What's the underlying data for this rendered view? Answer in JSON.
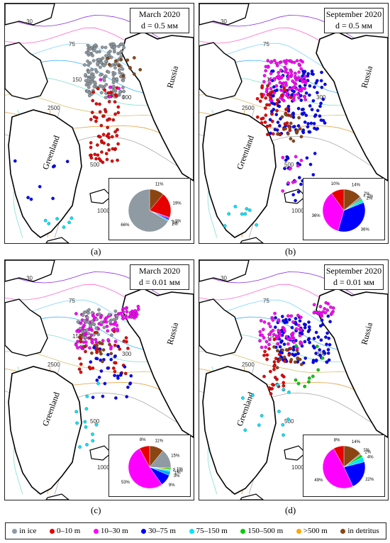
{
  "colors": {
    "in_ice": "#8f9aa3",
    "m0_10": "#e60000",
    "m10_30": "#ff00ff",
    "m30_75": "#0000ff",
    "m75_150": "#00e5ff",
    "m150_500": "#00cc00",
    "m500": "#ffa500",
    "detritus": "#8b4513",
    "land": "#ffffff",
    "coast": "#000000"
  },
  "places": {
    "russia": "Russia",
    "greenland": "Greenland"
  },
  "panels": [
    {
      "label": "(a)",
      "title": "March 2020",
      "subtitle": "d = 0.5 мм",
      "pie": [
        {
          "color": "#8b4513",
          "pct": 11,
          "label": "11%"
        },
        {
          "color": "#e60000",
          "pct": 19,
          "label": "19%"
        },
        {
          "color": "#ff00ff",
          "pct": 1,
          "label": "< 1%"
        },
        {
          "color": "#0000ff",
          "pct": 1,
          "label": "1%"
        },
        {
          "color": "#00e5ff",
          "pct": 1,
          "label": "1%"
        },
        {
          "color": "#8f9aa3",
          "pct": 66,
          "label": "66%"
        }
      ]
    },
    {
      "label": "(b)",
      "title": "September 2020",
      "subtitle": "d = 0.5 мм",
      "pie": [
        {
          "color": "#8b4513",
          "pct": 14,
          "label": "14%"
        },
        {
          "color": "#8f9aa3",
          "pct": 2,
          "label": "2%"
        },
        {
          "color": "#00cc00",
          "pct": 1,
          "label": "< 1%"
        },
        {
          "color": "#00e5ff",
          "pct": 2,
          "label": "2%"
        },
        {
          "color": "#0000ff",
          "pct": 36,
          "label": "36%"
        },
        {
          "color": "#ff00ff",
          "pct": 36,
          "label": "36%"
        },
        {
          "color": "#e60000",
          "pct": 10,
          "label": "10%"
        }
      ]
    },
    {
      "label": "(c)",
      "title": "March 2020",
      "subtitle": "d = 0.01 мм",
      "pie": [
        {
          "color": "#8b4513",
          "pct": 11,
          "label": "11%"
        },
        {
          "color": "#8f9aa3",
          "pct": 15,
          "label": "15%"
        },
        {
          "color": "#00cc00",
          "pct": 1,
          "label": "< 1%"
        },
        {
          "color": "#ffa500",
          "pct": 1,
          "label": "< 1%"
        },
        {
          "color": "#00e5ff",
          "pct": 1,
          "label": "1%"
        },
        {
          "color": "#00aaff",
          "pct": 3,
          "label": "3%"
        },
        {
          "color": "#0000ff",
          "pct": 9,
          "label": "9%"
        },
        {
          "color": "#ff00ff",
          "pct": 53,
          "label": "53%"
        },
        {
          "color": "#e60000",
          "pct": 8,
          "label": "8%"
        }
      ]
    },
    {
      "label": "(d)",
      "title": "September 2020",
      "subtitle": "d = 0.01 мм",
      "pie": [
        {
          "color": "#8b4513",
          "pct": 14,
          "label": "14%"
        },
        {
          "color": "#8f9aa3",
          "pct": 1,
          "label": "1%"
        },
        {
          "color": "#00cc00",
          "pct": 2,
          "label": "2%"
        },
        {
          "color": "#00e5ff",
          "pct": 4,
          "label": "4%"
        },
        {
          "color": "#0000ff",
          "pct": 22,
          "label": "22%"
        },
        {
          "color": "#ff00ff",
          "pct": 49,
          "label": "49%"
        },
        {
          "color": "#e60000",
          "pct": 8,
          "label": "8%"
        }
      ]
    }
  ],
  "contour_labels": [
    "30",
    "75",
    "150",
    "300",
    "500",
    "1000",
    "2500"
  ],
  "legend": [
    {
      "label": "in ice",
      "color": "#8f9aa3"
    },
    {
      "label": "0–10 m",
      "color": "#e60000"
    },
    {
      "label": "10–30 m",
      "color": "#ff00ff"
    },
    {
      "label": "30–75 m",
      "color": "#0000ff"
    },
    {
      "label": "75–150 m",
      "color": "#00e5ff"
    },
    {
      "label": "150–500 m",
      "color": "#00cc00"
    },
    {
      "label": ">500 m",
      "color": "#ffa500"
    },
    {
      "label": "in detritus",
      "color": "#8b4513"
    }
  ]
}
